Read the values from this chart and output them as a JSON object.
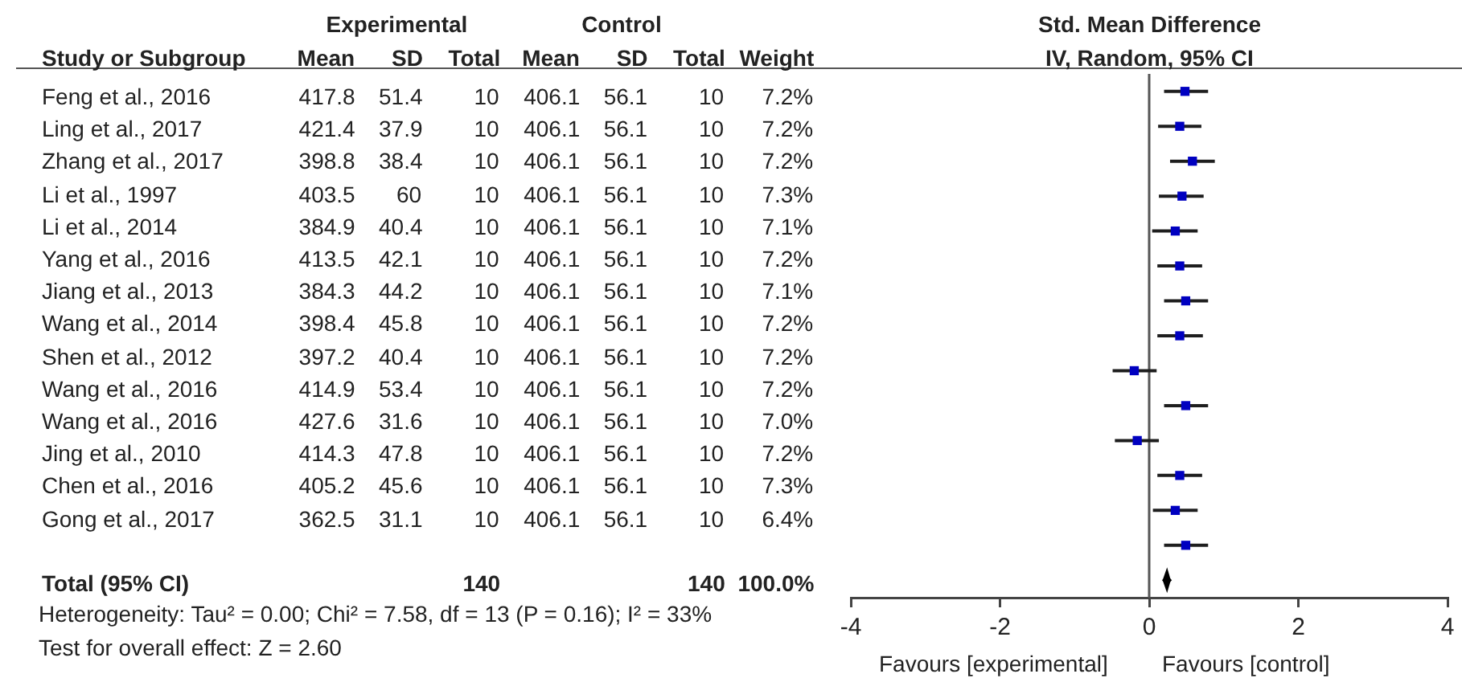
{
  "chart_data": [
    {
      "type": "heatmap",
      "ylabel": "Study or Subgroup",
      "categories": [
        "Mean",
        "SD",
        "Total",
        "Mean",
        "SD",
        "Total",
        "Weight"
      ],
      "y_categories": [
        "Feng et al., 2016",
        "Ling et al., 2017",
        "Zhang et al., 2017",
        "Li et al., 1997",
        "Li et al., 2014",
        "Yang et al., 2016",
        "Jiang et al., 2013",
        "Wang et al., 2014",
        "Shen et al., 2012",
        "Wang et al., 2016",
        "Wang et al., 2016",
        "Jing et al., 2010",
        "Chen et al., 2016",
        "Gong et al., 2017"
      ],
      "cells": [
        [
          417.8,
          51.4,
          10,
          406.1,
          56.1,
          10,
          7.2
        ],
        [
          421.4,
          37.9,
          10,
          406.1,
          56.1,
          10,
          7.2
        ],
        [
          398.8,
          38.4,
          10,
          406.1,
          56.1,
          10,
          7.2
        ],
        [
          403.5,
          60,
          10,
          406.1,
          56.1,
          10,
          7.3
        ],
        [
          384.9,
          40.4,
          10,
          406.1,
          56.1,
          10,
          7.1
        ],
        [
          413.5,
          42.1,
          10,
          406.1,
          56.1,
          10,
          7.2
        ],
        [
          384.3,
          44.2,
          10,
          406.1,
          56.1,
          10,
          7.1
        ],
        [
          398.4,
          45.8,
          10,
          406.1,
          56.1,
          10,
          7.2
        ],
        [
          397.2,
          40.4,
          10,
          406.1,
          56.1,
          10,
          7.2
        ],
        [
          414.9,
          53.4,
          10,
          406.1,
          56.1,
          10,
          7.2
        ],
        [
          427.6,
          31.6,
          10,
          406.1,
          56.1,
          10,
          7.0
        ],
        [
          414.3,
          47.8,
          10,
          406.1,
          56.1,
          10,
          7.2
        ],
        [
          405.2,
          45.6,
          10,
          406.1,
          56.1,
          10,
          7.3
        ],
        [
          362.5,
          31.1,
          10,
          406.1,
          56.1,
          10,
          6.4
        ]
      ],
      "cell_labels": [
        [
          "417.8",
          "51.4",
          "10",
          "406.1",
          "56.1",
          "10",
          "7.2%"
        ],
        [
          "421.4",
          "37.9",
          "10",
          "406.1",
          "56.1",
          "10",
          "7.2%"
        ],
        [
          "398.8",
          "38.4",
          "10",
          "406.1",
          "56.1",
          "10",
          "7.2%"
        ],
        [
          "403.5",
          "60",
          "10",
          "406.1",
          "56.1",
          "10",
          "7.3%"
        ],
        [
          "384.9",
          "40.4",
          "10",
          "406.1",
          "56.1",
          "10",
          "7.1%"
        ],
        [
          "413.5",
          "42.1",
          "10",
          "406.1",
          "56.1",
          "10",
          "7.2%"
        ],
        [
          "384.3",
          "44.2",
          "10",
          "406.1",
          "56.1",
          "10",
          "7.1%"
        ],
        [
          "398.4",
          "45.8",
          "10",
          "406.1",
          "56.1",
          "10",
          "7.2%"
        ],
        [
          "397.2",
          "40.4",
          "10",
          "406.1",
          "56.1",
          "10",
          "7.2%"
        ],
        [
          "414.9",
          "53.4",
          "10",
          "406.1",
          "56.1",
          "10",
          "7.2%"
        ],
        [
          "427.6",
          "31.6",
          "10",
          "406.1",
          "56.1",
          "10",
          "7.0%"
        ],
        [
          "414.3",
          "47.8",
          "10",
          "406.1",
          "56.1",
          "10",
          "7.2%"
        ],
        [
          "405.2",
          "45.6",
          "10",
          "406.1",
          "56.1",
          "10",
          "7.3%"
        ],
        [
          "362.5",
          "31.1",
          "10",
          "406.1",
          "56.1",
          "10",
          "6.4%"
        ]
      ],
      "annotations": [
        "Experimental",
        "Control"
      ]
    },
    {
      "type": "heatmap",
      "tick_labels": "y",
      "categories": [
        "Mean",
        "SD",
        "Total",
        "Mean",
        "SD",
        "Total",
        "Weight"
      ],
      "y_categories": [
        "Total (95% CI)"
      ],
      "cells": [
        [
          null,
          null,
          140,
          null,
          null,
          140,
          100.0
        ]
      ],
      "cell_labels": [
        [
          null,
          null,
          "140",
          null,
          null,
          "140",
          "100.0%"
        ]
      ],
      "annotations": [
        "Heterogeneity: Tau² = 0.00; Chi² = 7.58, df = 13 (P = 0.16); I² = 33%",
        "Test for overall effect: Z = 2.60"
      ]
    },
    {
      "type": "scatter",
      "orientation": "horizontal",
      "title": "Std. Mean Difference",
      "subtitle": "IV, Random, 95% CI",
      "tick_labels": "x",
      "categories": [
        null,
        null,
        null,
        null,
        null,
        null,
        null,
        null,
        null,
        null,
        null,
        null,
        null,
        null,
        null
      ],
      "series": [
        {
          "type": "scatter",
          "marker": "square",
          "color": "#0000c0",
          "values": [
            0.48,
            0.41,
            0.58,
            0.44,
            0.35,
            0.41,
            0.49,
            0.41,
            -0.2,
            0.49,
            -0.16,
            0.41,
            0.35,
            0.49,
            null
          ],
          "errors": [
            [
              0.2,
              0.79
            ],
            [
              0.12,
              0.7
            ],
            [
              0.28,
              0.88
            ],
            [
              0.13,
              0.73
            ],
            [
              0.04,
              0.65
            ],
            [
              0.11,
              0.71
            ],
            [
              0.2,
              0.79
            ],
            [
              0.11,
              0.72
            ],
            [
              -0.49,
              0.1
            ],
            [
              0.2,
              0.79
            ],
            [
              -0.46,
              0.13
            ],
            [
              0.11,
              0.71
            ],
            [
              0.05,
              0.65
            ],
            [
              0.2,
              0.79
            ],
            null
          ]
        },
        {
          "type": "scatter",
          "marker": "diamond",
          "color": "#000000",
          "values": [
            null,
            null,
            null,
            null,
            null,
            null,
            null,
            null,
            null,
            null,
            null,
            null,
            null,
            null,
            0.24
          ],
          "errors": [
            null,
            null,
            null,
            null,
            null,
            null,
            null,
            null,
            null,
            null,
            null,
            null,
            null,
            null,
            [
              0.18,
              0.29
            ]
          ]
        }
      ],
      "xlim": [
        -4,
        4
      ],
      "xticks": [
        -4,
        -2,
        0,
        2,
        4
      ],
      "ref_lines": [
        {
          "axis": "x",
          "value": 0,
          "color": "#555555"
        }
      ],
      "annotations": [
        "Favours [experimental]",
        "Favours [control]"
      ]
    }
  ]
}
